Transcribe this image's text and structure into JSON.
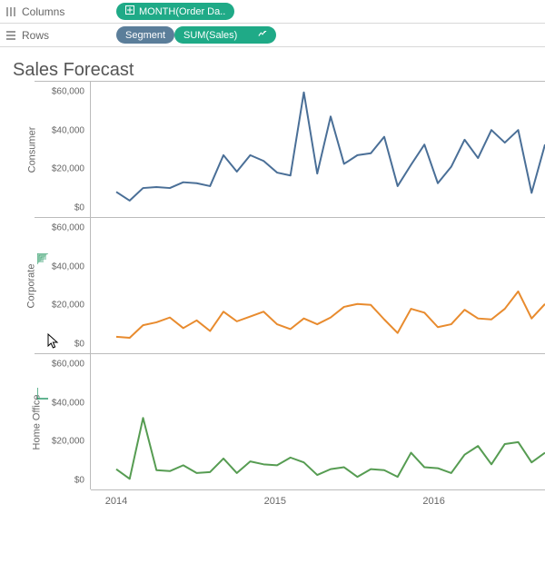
{
  "shelves": {
    "columns": {
      "label": "Columns",
      "pills": [
        {
          "label": "MONTH(Order Da..",
          "color_class": "pill-green",
          "icon": "plus-box"
        }
      ]
    },
    "rows": {
      "label": "Rows",
      "pills": [
        {
          "label": "Segment",
          "color_class": "pill-blue"
        },
        {
          "label": "SUM(Sales)",
          "color_class": "pill-green",
          "icon": "forecast"
        }
      ]
    }
  },
  "sheet_title": "Sales Forecast",
  "chart": {
    "type": "line",
    "x": {
      "domain": [
        2014,
        2016.7
      ],
      "year_ticks": [
        2014,
        2015,
        2016
      ],
      "n_points": 33
    },
    "y": {
      "lim": [
        -5000,
        65000
      ],
      "ticks": [
        0,
        20000,
        40000,
        60000
      ],
      "tick_labels": [
        "$0",
        "$20,000",
        "$40,000",
        "$60,000"
      ]
    },
    "panels": [
      {
        "segment": "Consumer",
        "line_color": "#4a6f97",
        "line_width": 2,
        "values": [
          8000,
          3500,
          10000,
          10500,
          10000,
          13000,
          12500,
          11000,
          27000,
          18500,
          27000,
          24000,
          18000,
          16500,
          59500,
          17500,
          47000,
          22500,
          27000,
          28000,
          36500,
          11000,
          22000,
          32500,
          12500,
          21000,
          35000,
          25500,
          40000,
          33500,
          40000,
          7500,
          32500
        ]
      },
      {
        "segment": "Corporate",
        "line_color": "#e88b2e",
        "line_width": 2,
        "values": [
          3500,
          3000,
          9500,
          11000,
          13500,
          8000,
          12000,
          6500,
          16500,
          11500,
          14000,
          16500,
          10000,
          7500,
          13000,
          10000,
          13500,
          19000,
          20500,
          20000,
          12500,
          5500,
          18000,
          16000,
          8500,
          10000,
          17500,
          13000,
          12500,
          18000,
          27000,
          13000,
          20500
        ]
      },
      {
        "segment": "Home Office",
        "line_color": "#569c52",
        "line_width": 2,
        "values": [
          5500,
          500,
          32000,
          5000,
          4500,
          7500,
          3500,
          4000,
          11000,
          3500,
          9500,
          8000,
          7500,
          11500,
          9000,
          2500,
          5500,
          6500,
          1500,
          5500,
          5000,
          1500,
          14000,
          6500,
          6000,
          3500,
          13000,
          17500,
          8000,
          18500,
          19500,
          9000,
          14000
        ]
      }
    ],
    "background_color": "#ffffff",
    "axis_color": "#bbbbbb",
    "title_fontsize": 20,
    "label_fontsize": 11
  }
}
